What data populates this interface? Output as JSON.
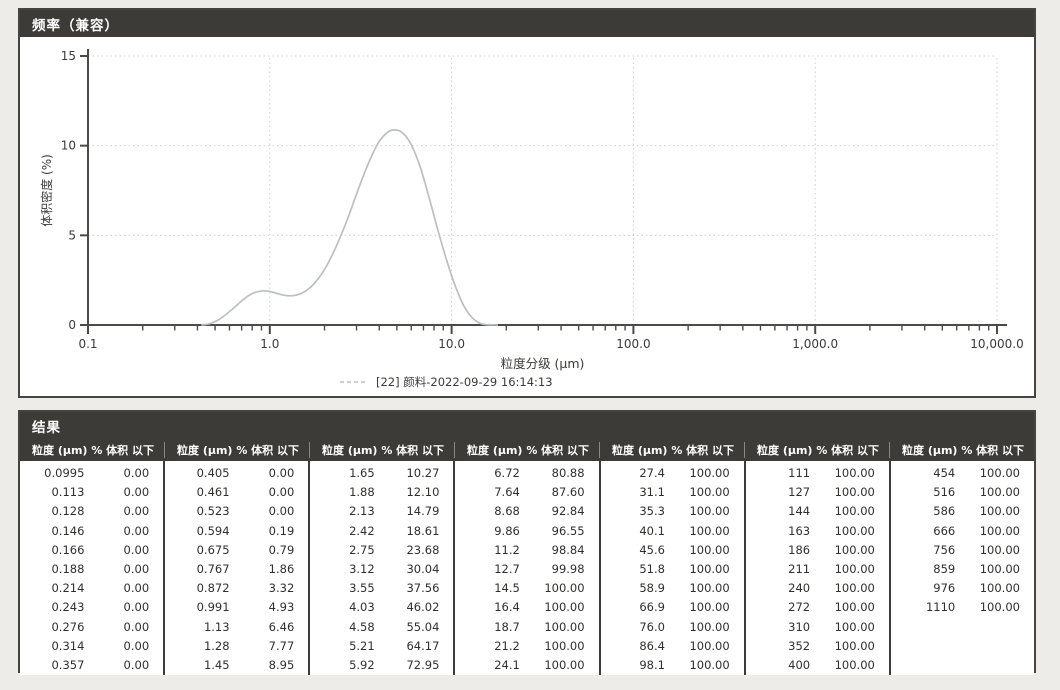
{
  "frequency_panel": {
    "title": "频率（兼容）"
  },
  "chart_data": {
    "type": "line",
    "title": "",
    "xlabel": "粒度分级 (µm)",
    "ylabel": "体积密度 (%)",
    "x_scale": "log",
    "xlim": [
      0.1,
      10000
    ],
    "ylim": [
      0,
      15
    ],
    "y_ticks": [
      0,
      5,
      10,
      15
    ],
    "x_major_ticks": [
      0.1,
      1,
      10,
      100,
      1000,
      10000
    ],
    "x_tick_labels": [
      "0.1",
      "1.0",
      "10.0",
      "100.0",
      "1,000.0",
      "10,000.0"
    ],
    "grid": "dotted",
    "legend_position": "bottom",
    "series": [
      {
        "name": "[22] 颜料-2022-09-29 16:14:13",
        "color": "#bcbfc2",
        "points": [
          [
            0.42,
            0
          ],
          [
            0.47,
            0.08
          ],
          [
            0.52,
            0.28
          ],
          [
            0.58,
            0.62
          ],
          [
            0.65,
            1.05
          ],
          [
            0.72,
            1.45
          ],
          [
            0.8,
            1.75
          ],
          [
            0.9,
            1.9
          ],
          [
            1.0,
            1.87
          ],
          [
            1.12,
            1.73
          ],
          [
            1.25,
            1.63
          ],
          [
            1.4,
            1.67
          ],
          [
            1.55,
            1.85
          ],
          [
            1.75,
            2.3
          ],
          [
            2.0,
            3.1
          ],
          [
            2.3,
            4.3
          ],
          [
            2.65,
            5.8
          ],
          [
            3.0,
            7.3
          ],
          [
            3.45,
            8.9
          ],
          [
            3.95,
            10.15
          ],
          [
            4.45,
            10.75
          ],
          [
            4.9,
            10.88
          ],
          [
            5.4,
            10.7
          ],
          [
            6.0,
            10.05
          ],
          [
            6.7,
            8.85
          ],
          [
            7.5,
            7.15
          ],
          [
            8.4,
            5.3
          ],
          [
            9.4,
            3.6
          ],
          [
            10.5,
            2.15
          ],
          [
            11.7,
            1.05
          ],
          [
            13.0,
            0.4
          ],
          [
            14.3,
            0.1
          ],
          [
            15.5,
            0.02
          ],
          [
            18.0,
            0
          ]
        ]
      }
    ]
  },
  "results_panel": {
    "title": "结果",
    "column_headers": {
      "size": "粒度 (µm)",
      "pct": "% 体积 以下"
    },
    "groups": [
      {
        "rows": [
          [
            "0.0995",
            "0.00"
          ],
          [
            "0.113",
            "0.00"
          ],
          [
            "0.128",
            "0.00"
          ],
          [
            "0.146",
            "0.00"
          ],
          [
            "0.166",
            "0.00"
          ],
          [
            "0.188",
            "0.00"
          ],
          [
            "0.214",
            "0.00"
          ],
          [
            "0.243",
            "0.00"
          ],
          [
            "0.276",
            "0.00"
          ],
          [
            "0.314",
            "0.00"
          ],
          [
            "0.357",
            "0.00"
          ]
        ]
      },
      {
        "rows": [
          [
            "0.405",
            "0.00"
          ],
          [
            "0.461",
            "0.00"
          ],
          [
            "0.523",
            "0.00"
          ],
          [
            "0.594",
            "0.19"
          ],
          [
            "0.675",
            "0.79"
          ],
          [
            "0.767",
            "1.86"
          ],
          [
            "0.872",
            "3.32"
          ],
          [
            "0.991",
            "4.93"
          ],
          [
            "1.13",
            "6.46"
          ],
          [
            "1.28",
            "7.77"
          ],
          [
            "1.45",
            "8.95"
          ]
        ]
      },
      {
        "rows": [
          [
            "1.65",
            "10.27"
          ],
          [
            "1.88",
            "12.10"
          ],
          [
            "2.13",
            "14.79"
          ],
          [
            "2.42",
            "18.61"
          ],
          [
            "2.75",
            "23.68"
          ],
          [
            "3.12",
            "30.04"
          ],
          [
            "3.55",
            "37.56"
          ],
          [
            "4.03",
            "46.02"
          ],
          [
            "4.58",
            "55.04"
          ],
          [
            "5.21",
            "64.17"
          ],
          [
            "5.92",
            "72.95"
          ]
        ]
      },
      {
        "rows": [
          [
            "6.72",
            "80.88"
          ],
          [
            "7.64",
            "87.60"
          ],
          [
            "8.68",
            "92.84"
          ],
          [
            "9.86",
            "96.55"
          ],
          [
            "11.2",
            "98.84"
          ],
          [
            "12.7",
            "99.98"
          ],
          [
            "14.5",
            "100.00"
          ],
          [
            "16.4",
            "100.00"
          ],
          [
            "18.7",
            "100.00"
          ],
          [
            "21.2",
            "100.00"
          ],
          [
            "24.1",
            "100.00"
          ]
        ]
      },
      {
        "rows": [
          [
            "27.4",
            "100.00"
          ],
          [
            "31.1",
            "100.00"
          ],
          [
            "35.3",
            "100.00"
          ],
          [
            "40.1",
            "100.00"
          ],
          [
            "45.6",
            "100.00"
          ],
          [
            "51.8",
            "100.00"
          ],
          [
            "58.9",
            "100.00"
          ],
          [
            "66.9",
            "100.00"
          ],
          [
            "76.0",
            "100.00"
          ],
          [
            "86.4",
            "100.00"
          ],
          [
            "98.1",
            "100.00"
          ]
        ]
      },
      {
        "rows": [
          [
            "111",
            "100.00"
          ],
          [
            "127",
            "100.00"
          ],
          [
            "144",
            "100.00"
          ],
          [
            "163",
            "100.00"
          ],
          [
            "186",
            "100.00"
          ],
          [
            "211",
            "100.00"
          ],
          [
            "240",
            "100.00"
          ],
          [
            "272",
            "100.00"
          ],
          [
            "310",
            "100.00"
          ],
          [
            "352",
            "100.00"
          ],
          [
            "400",
            "100.00"
          ]
        ]
      },
      {
        "rows": [
          [
            "454",
            "100.00"
          ],
          [
            "516",
            "100.00"
          ],
          [
            "586",
            "100.00"
          ],
          [
            "666",
            "100.00"
          ],
          [
            "756",
            "100.00"
          ],
          [
            "859",
            "100.00"
          ],
          [
            "976",
            "100.00"
          ],
          [
            "1110",
            "100.00"
          ]
        ]
      }
    ]
  },
  "colors": {
    "titlebar_bg": "#3c3b38",
    "axis": "#4b4a47",
    "grid": "#cfcecb",
    "curve": "#bcbfc2",
    "text": "#3a3a38"
  }
}
